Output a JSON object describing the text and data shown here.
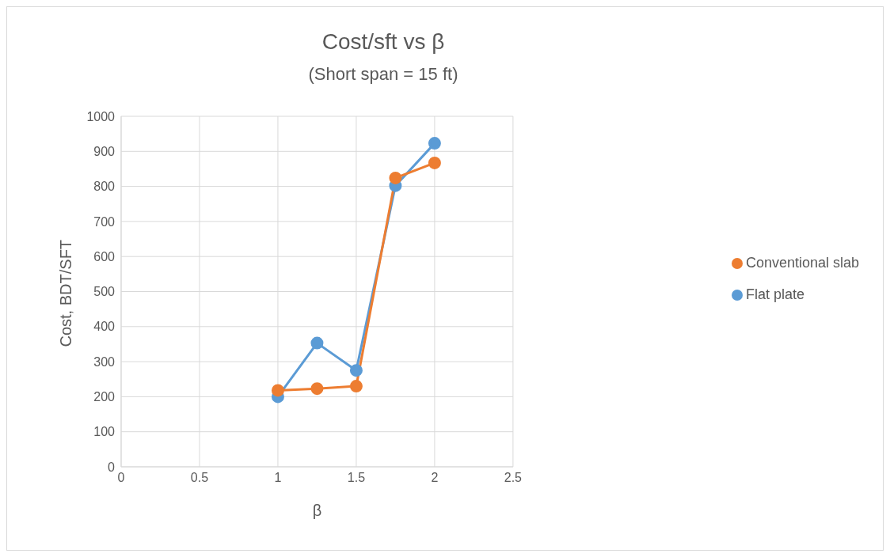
{
  "chart_data": {
    "type": "line",
    "title": "Cost/sft vs β",
    "subtitle": "(Short span = 15 ft)",
    "xlabel": "β",
    "ylabel": "Cost, BDT/SFT",
    "x": [
      1,
      1.25,
      1.5,
      1.75,
      2
    ],
    "series": [
      {
        "name": "Flat plate",
        "color": "#5b9bd5",
        "values": [
          200,
          353,
          275,
          802,
          923
        ]
      },
      {
        "name": "Conventional slab",
        "color": "#ed7d31",
        "values": [
          218,
          223,
          230,
          824,
          867
        ]
      }
    ],
    "xlim": [
      0,
      2.5
    ],
    "xticks": [
      0,
      0.5,
      1,
      1.5,
      2,
      2.5
    ],
    "ylim": [
      0,
      1000
    ],
    "yticks": [
      0,
      100,
      200,
      300,
      400,
      500,
      600,
      700,
      800,
      900,
      1000
    ],
    "grid": true,
    "legend": "right",
    "marker": "circle",
    "line_style": "solid"
  }
}
